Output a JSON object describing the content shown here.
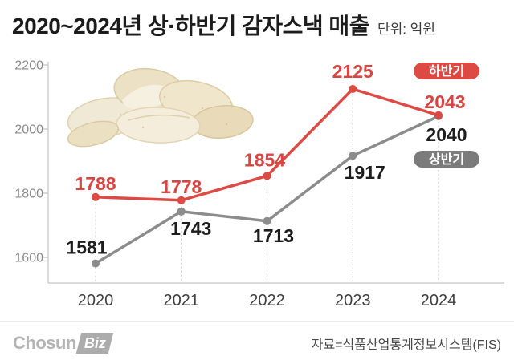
{
  "header": {
    "title": "2020~2024년 상·하반기 감자스낵 매출",
    "unit_label": "단위: 억원"
  },
  "chart_data": {
    "type": "line",
    "title": "2020~2024년 상·하반기 감자스낵 매출",
    "unit": "억원",
    "categories": [
      "2020",
      "2021",
      "2022",
      "2023",
      "2024"
    ],
    "series": [
      {
        "name": "하반기",
        "values": [
          1788,
          1778,
          1854,
          2125,
          2043
        ],
        "color": "#dd4a44",
        "label_color": "#d94540",
        "badge_bg": "#dd4a44"
      },
      {
        "name": "상반기",
        "values": [
          1581,
          1743,
          1713,
          1917,
          2040
        ],
        "color": "#8c8c8c",
        "label_color": "#1d1d1d",
        "badge_bg": "#7b7b7b"
      }
    ],
    "yticks": [
      1600,
      1800,
      2000,
      2200
    ],
    "ylim": [
      1550,
      2240
    ],
    "grid": "dotted vertical line at each data point",
    "legend_position": "right, pill badges (하반기 red top, 상반기 gray below)",
    "axis_color": "#cfcfcf",
    "grid_color": "#c9c9c9"
  },
  "images": {
    "chips": "potato-chips-photo"
  },
  "footer": {
    "logo": {
      "part1": "Chosun",
      "part2": "Biz"
    },
    "source": "자료=식품산업통계정보시스템(FIS)"
  }
}
